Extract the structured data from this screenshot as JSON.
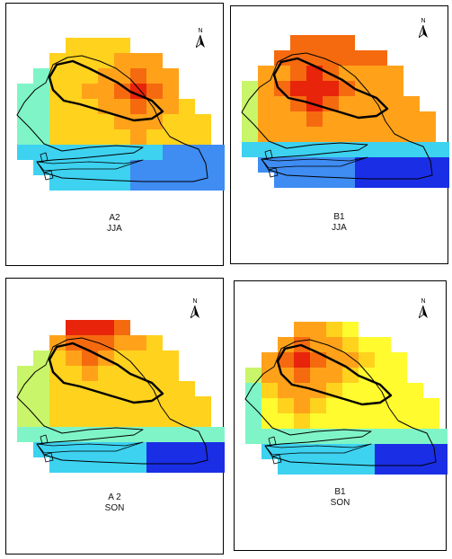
{
  "panels": [
    {
      "scenario": "A2",
      "season": "JJA",
      "north_label": "N",
      "dominant": "north-warm-east"
    },
    {
      "scenario": "B1",
      "season": "JJA",
      "north_label": "N",
      "dominant": "northwest-hot"
    },
    {
      "scenario": "A 2",
      "season": "SON",
      "north_label": "N",
      "dominant": "north-hot-center"
    },
    {
      "scenario": "B1",
      "season": "SON",
      "north_label": "N",
      "dominant": "northwest-hot"
    }
  ],
  "color_scale": [
    "#1a2ee6",
    "#3f8cf2",
    "#3dd2f0",
    "#7ff5c7",
    "#c9f56a",
    "#fffb2e",
    "#ffd21e",
    "#ffa21a",
    "#f56a0f",
    "#e8240a"
  ],
  "north_arrow_icon": "north-arrow-icon"
}
